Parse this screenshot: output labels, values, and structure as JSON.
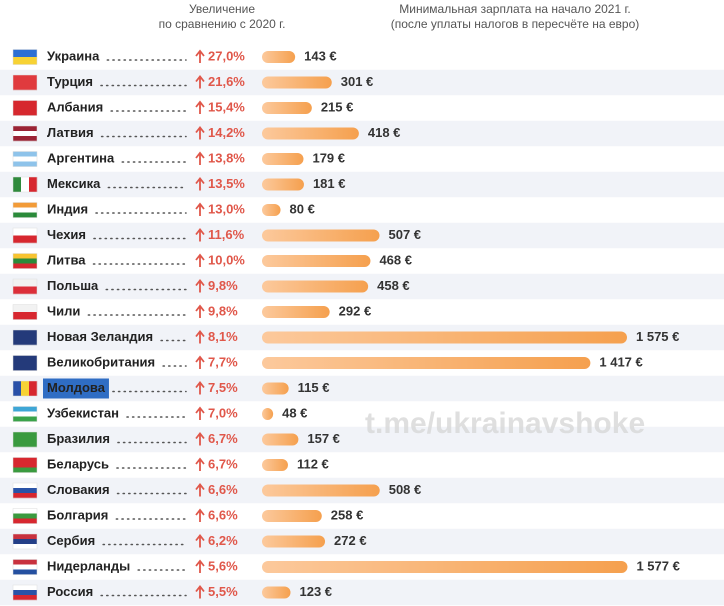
{
  "chart_data": {
    "type": "hbar",
    "increase_header": [
      "Увеличение",
      "по сравнению с 2020 г."
    ],
    "value_header": [
      "Минимальная зарплата на начало 2021 г.",
      "(после уплаты налогов в пересчёте на евро)"
    ],
    "watermark": "t.me/ukrainavshoke",
    "categories": [
      "Украина",
      "Турция",
      "Албания",
      "Латвия",
      "Аргентина",
      "Мексика",
      "Индия",
      "Чехия",
      "Литва",
      "Польша",
      "Чили",
      "Новая Зеландия",
      "Великобритания",
      "Молдова",
      "Узбекистан",
      "Бразилия",
      "Беларусь",
      "Словакия",
      "Болгария",
      "Сербия",
      "Нидерланды",
      "Россия"
    ],
    "increase": [
      27.0,
      21.6,
      15.4,
      14.2,
      13.8,
      13.5,
      13.0,
      11.6,
      10.0,
      9.8,
      9.8,
      8.1,
      7.7,
      7.5,
      7.0,
      6.7,
      6.7,
      6.6,
      6.6,
      6.2,
      5.6,
      5.5
    ],
    "increase_labels": [
      "27,0%",
      "21,6%",
      "15,4%",
      "14,2%",
      "13,8%",
      "13,5%",
      "13,0%",
      "11,6%",
      "10,0%",
      "9,8%",
      "9,8%",
      "8,1%",
      "7,7%",
      "7,5%",
      "7,0%",
      "6,7%",
      "6,7%",
      "6,6%",
      "6,6%",
      "6,2%",
      "5,6%",
      "5,5%"
    ],
    "values": [
      143,
      301,
      215,
      418,
      179,
      181,
      80,
      507,
      468,
      458,
      292,
      1575,
      1417,
      115,
      48,
      157,
      112,
      508,
      258,
      272,
      1577,
      123
    ],
    "value_labels": [
      "143 €",
      "301 €",
      "215 €",
      "418 €",
      "179 €",
      "181 €",
      "80 €",
      "507 €",
      "468 €",
      "458 €",
      "292 €",
      "1 575 €",
      "1 417 €",
      "115 €",
      "48 €",
      "157 €",
      "112 €",
      "508 €",
      "258 €",
      "272 €",
      "1 577 €",
      "123 €"
    ],
    "color": "#f5a04e",
    "increase_color": "#e0574a",
    "highlight_index": 13
  }
}
